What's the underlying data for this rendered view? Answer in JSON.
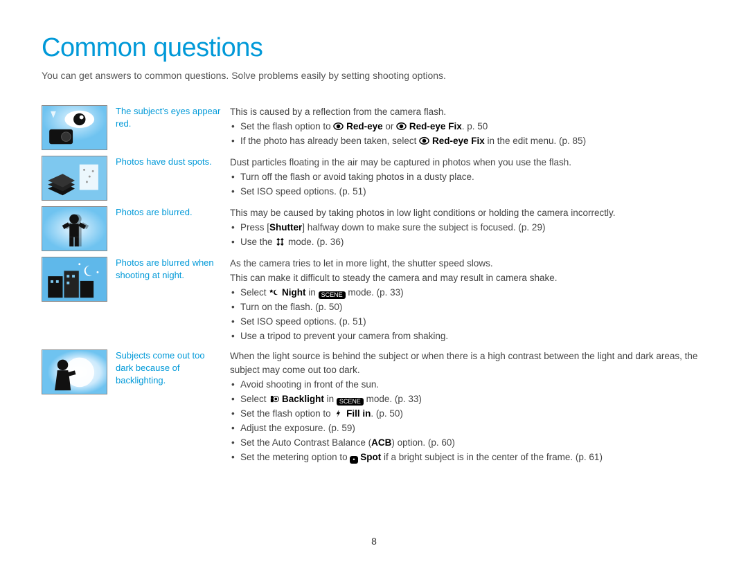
{
  "page": {
    "title": "Common questions",
    "intro": "You can get answers to common questions. Solve problems easily by setting shooting options.",
    "page_number": "8"
  },
  "colors": {
    "accent": "#0099d8",
    "text": "#444444",
    "thumb_top": "#b7e4ff",
    "thumb_bottom": "#5bbaf2"
  },
  "items": [
    {
      "icon": "red-eye",
      "question": "The subject's eyes appear red.",
      "intro_text": "This is caused by a reflection from the camera flash.",
      "bullets": [
        {
          "parts": [
            {
              "t": "Set the flash option to "
            },
            {
              "svg": "eye"
            },
            {
              "t": " "
            },
            {
              "b": "Red-eye"
            },
            {
              "t": " or "
            },
            {
              "svg": "eye-fix"
            },
            {
              "t": " "
            },
            {
              "b": "Red-eye Fix"
            },
            {
              "t": ". p. 50"
            }
          ]
        },
        {
          "parts": [
            {
              "t": "If the photo has already been taken, select "
            },
            {
              "svg": "eye-fix"
            },
            {
              "t": " "
            },
            {
              "b": "Red-eye Fix"
            },
            {
              "t": " in the edit menu. (p. 85)"
            }
          ]
        }
      ]
    },
    {
      "icon": "dust",
      "question": "Photos have dust spots.",
      "intro_text": "Dust particles floating in the air may be captured in photos when you use the flash.",
      "bullets": [
        {
          "parts": [
            {
              "t": "Turn off the flash or avoid taking photos in a dusty place."
            }
          ]
        },
        {
          "parts": [
            {
              "t": "Set ISO speed options. (p. 51)"
            }
          ]
        }
      ]
    },
    {
      "icon": "blur",
      "question": "Photos are blurred.",
      "intro_text": "This may be caused by taking photos in low light conditions or holding the camera incorrectly.",
      "bullets": [
        {
          "parts": [
            {
              "t": "Press ["
            },
            {
              "b": "Shutter"
            },
            {
              "t": "] halfway down to make sure the subject is focused. (p. 29)"
            }
          ]
        },
        {
          "parts": [
            {
              "t": "Use the "
            },
            {
              "svg": "dual"
            },
            {
              "t": " mode. (p. 36)"
            }
          ]
        }
      ]
    },
    {
      "icon": "night",
      "question": "Photos are blurred when shooting at night.",
      "intro_text": "As the camera tries to let in more light, the shutter speed slows.",
      "intro_text2": "This can make it difficult to steady the camera and may result in camera shake.",
      "bullets": [
        {
          "parts": [
            {
              "t": "Select "
            },
            {
              "svg": "star-moon"
            },
            {
              "t": " "
            },
            {
              "b": "Night"
            },
            {
              "t": " in "
            },
            {
              "pill": "SCENE"
            },
            {
              "t": " mode. (p. 33)"
            }
          ]
        },
        {
          "parts": [
            {
              "t": "Turn on the flash. (p. 50)"
            }
          ]
        },
        {
          "parts": [
            {
              "t": "Set ISO speed options. (p. 51)"
            }
          ]
        },
        {
          "parts": [
            {
              "t": "Use a tripod to prevent your camera from shaking."
            }
          ]
        }
      ]
    },
    {
      "icon": "backlight",
      "question": "Subjects come out too dark because of backlighting.",
      "intro_text": "When the light source is behind the subject or when there is a high contrast between the light and dark areas, the subject may come out too dark.",
      "bullets": [
        {
          "parts": [
            {
              "t": "Avoid shooting in front of the sun."
            }
          ]
        },
        {
          "parts": [
            {
              "t": "Select "
            },
            {
              "svg": "backlight-person"
            },
            {
              "t": " "
            },
            {
              "b": "Backlight"
            },
            {
              "t": " in "
            },
            {
              "pill": "SCENE"
            },
            {
              "t": " mode. (p. 33)"
            }
          ]
        },
        {
          "parts": [
            {
              "t": "Set the flash option to "
            },
            {
              "svg": "bolt"
            },
            {
              "t": " "
            },
            {
              "b": "Fill in"
            },
            {
              "t": ". (p. 50)"
            }
          ]
        },
        {
          "parts": [
            {
              "t": "Adjust the exposure. (p. 59)"
            }
          ]
        },
        {
          "parts": [
            {
              "t": "Set the Auto Contrast Balance ("
            },
            {
              "b": "ACB"
            },
            {
              "t": ") option. (p. 60)"
            }
          ]
        },
        {
          "parts": [
            {
              "t": "Set the metering option to "
            },
            {
              "pill": "•"
            },
            {
              "t": " "
            },
            {
              "b": "Spot"
            },
            {
              "t": " if a bright subject is in the center of the frame. (p. 61)"
            }
          ]
        }
      ]
    }
  ]
}
